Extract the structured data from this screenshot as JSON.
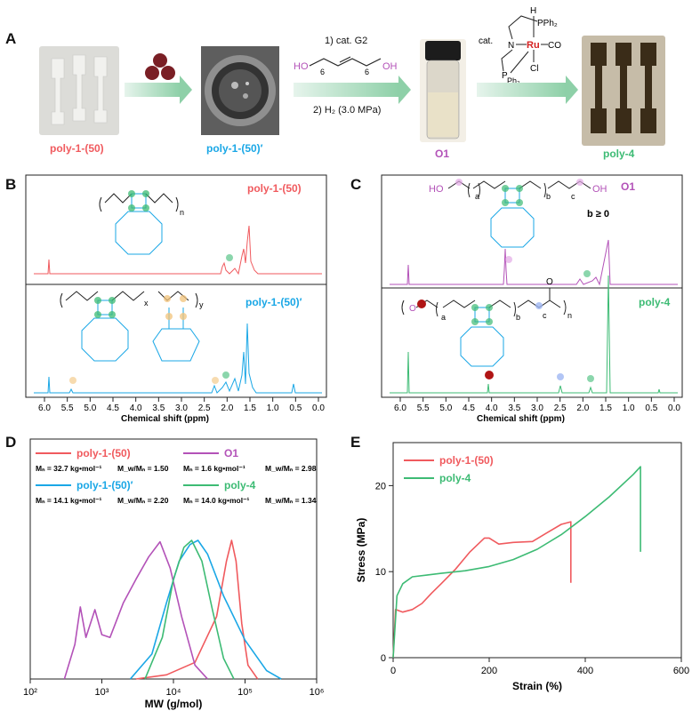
{
  "panels": {
    "A": "A",
    "B": "B",
    "C": "C",
    "D": "D",
    "E": "E"
  },
  "panelA": {
    "sample1": "poly-1-(50)",
    "sample2": "poly-1-(50)′",
    "sample3": "O1",
    "sample4": "poly-4",
    "step1": "1) cat. G2",
    "step2": "2) H₂ (3.0 MPa)",
    "diol_left": "HO",
    "diol_right": "OH",
    "diol_sub": "6",
    "cat_label": "cat.",
    "cat_pph2_top": "PPh₂",
    "cat_pph2_bottom": "Ph₂",
    "cat_ru": "Ru",
    "cat_co": "CO",
    "cat_cl": "Cl",
    "cat_h": "H",
    "cat_n": "N",
    "cat_p": "P"
  },
  "panelB": {
    "trace1_label": "poly-1-(50)",
    "trace2_label": "poly-1-(50)′",
    "xlabel": "Chemical shift (ppm)",
    "ticks": [
      "6.0",
      "5.5",
      "5.0",
      "4.5",
      "4.0",
      "3.5",
      "3.0",
      "2.5",
      "2.0",
      "1.5",
      "1.0",
      "0.5",
      "0.0"
    ],
    "sub_n": "n",
    "sub_x": "x",
    "sub_y": "y"
  },
  "panelC": {
    "trace1_label": "O1",
    "trace2_label": "poly-4",
    "b_note": "b ≥ 0",
    "xlabel": "Chemical shift (ppm)",
    "ticks": [
      "6.0",
      "5.5",
      "5.0",
      "4.5",
      "4.0",
      "3.5",
      "3.0",
      "2.5",
      "2.0",
      "1.5",
      "1.0",
      "0.5",
      "0.0"
    ],
    "ho": "HO",
    "oh": "OH",
    "sub_a": "a",
    "sub_b": "b",
    "sub_c": "c",
    "sub_n": "n",
    "o": "O"
  },
  "colors": {
    "red": "#f05a5e",
    "cyan": "#1aa7e6",
    "magenta": "#b352b8",
    "green": "#3dbb74"
  },
  "chart_data": [
    {
      "type": "line",
      "panel": "D",
      "xlabel": "MW (g/mol)",
      "xscale": "log",
      "xlim": [
        100,
        1000000
      ],
      "xticks": [
        "10²",
        "10³",
        "10⁴",
        "10⁵",
        "10⁶"
      ],
      "legend": [
        {
          "name": "poly-1-(50)",
          "stats_mn": "Mₙ = 32.7 kg•mol⁻¹",
          "stats_pdi": "M_w/Mₙ = 1.50"
        },
        {
          "name": "O1",
          "stats_mn": "Mₙ =  1.6 kg•mol⁻¹",
          "stats_pdi": "M_w/Mₙ = 2.98"
        },
        {
          "name": "poly-1-(50)′",
          "stats_mn": "Mₙ = 14.1 kg•mol⁻¹",
          "stats_pdi": "M_w/Mₙ = 2.20"
        },
        {
          "name": "poly-4",
          "stats_mn": "Mₙ = 14.0 kg•mol⁻¹",
          "stats_pdi": "M_w/Mₙ = 1.34"
        }
      ],
      "series": [
        {
          "name": "poly-1-(50)",
          "color": "#f05a5e",
          "x": [
            3000,
            8000,
            20000,
            40000,
            55000,
            65000,
            75000,
            90000,
            110000,
            150000
          ],
          "y": [
            0,
            0.03,
            0.12,
            0.45,
            0.85,
            1.0,
            0.85,
            0.4,
            0.1,
            0.0
          ]
        },
        {
          "name": "O1",
          "color": "#b352b8",
          "x": [
            300,
            420,
            500,
            600,
            800,
            1000,
            1300,
            2000,
            3000,
            4500,
            6500,
            9000,
            13000,
            20000,
            30000
          ],
          "y": [
            0,
            0.25,
            0.52,
            0.3,
            0.5,
            0.32,
            0.3,
            0.55,
            0.72,
            0.88,
            0.99,
            0.8,
            0.45,
            0.1,
            0.0
          ]
        },
        {
          "name": "poly-1-(50)′",
          "color": "#1aa7e6",
          "x": [
            2500,
            5000,
            8000,
            12000,
            17000,
            22000,
            30000,
            50000,
            100000,
            200000,
            320000
          ],
          "y": [
            0,
            0.18,
            0.55,
            0.85,
            0.97,
            1.0,
            0.9,
            0.6,
            0.28,
            0.06,
            0.0
          ]
        },
        {
          "name": "poly-4",
          "color": "#3dbb74",
          "x": [
            4000,
            7000,
            10000,
            14000,
            18000,
            25000,
            35000,
            50000,
            70000
          ],
          "y": [
            0,
            0.3,
            0.72,
            0.95,
            1.0,
            0.85,
            0.5,
            0.15,
            0.0
          ]
        }
      ]
    },
    {
      "type": "line",
      "panel": "E",
      "xlabel": "Strain (%)",
      "ylabel": "Stress (MPa)",
      "xlim": [
        0,
        600
      ],
      "ylim": [
        0,
        25
      ],
      "xticks": [
        0,
        200,
        400,
        600
      ],
      "yticks": [
        0,
        10,
        20
      ],
      "series": [
        {
          "name": "poly-1-(50)",
          "color": "#f05a5e",
          "x": [
            0,
            5,
            20,
            40,
            60,
            80,
            100,
            130,
            160,
            190,
            200,
            220,
            250,
            290,
            320,
            350,
            370,
            370
          ],
          "y": [
            0,
            5.6,
            5.3,
            5.6,
            6.3,
            7.5,
            8.6,
            10.3,
            12.3,
            13.9,
            13.9,
            13.2,
            13.4,
            13.5,
            14.5,
            15.5,
            15.8,
            8.7
          ]
        },
        {
          "name": "poly-4",
          "color": "#3dbb74",
          "x": [
            0,
            8,
            20,
            40,
            70,
            100,
            150,
            200,
            250,
            300,
            350,
            400,
            450,
            500,
            515,
            515
          ],
          "y": [
            0,
            7.2,
            8.6,
            9.4,
            9.6,
            9.8,
            10.1,
            10.6,
            11.4,
            12.6,
            14.3,
            16.4,
            18.7,
            21.3,
            22.2,
            12.3
          ]
        }
      ]
    }
  ]
}
